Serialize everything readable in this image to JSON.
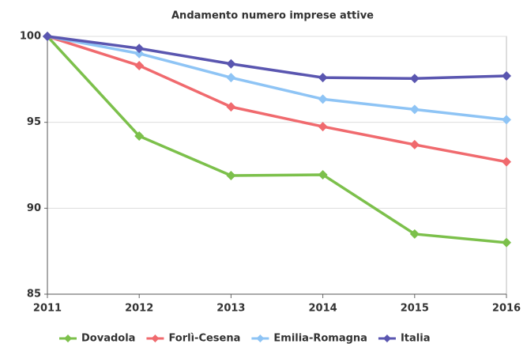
{
  "chart_data": {
    "type": "line",
    "title": "Andamento numero imprese attive",
    "x": [
      2011,
      2012,
      2013,
      2014,
      2015,
      2016
    ],
    "xlim": [
      2011,
      2016
    ],
    "xticks": [
      2011,
      2012,
      2013,
      2014,
      2015,
      2016
    ],
    "ylim": [
      85,
      100
    ],
    "yticks": [
      85,
      90,
      95,
      100
    ],
    "grid": true,
    "legend": "bottom",
    "series": [
      {
        "name": "Dovadola",
        "color": "#7cc04b",
        "values": [
          100,
          94.2,
          91.9,
          91.95,
          88.5,
          88.0
        ]
      },
      {
        "name": "Forlì-Cesena",
        "color": "#f06a6e",
        "values": [
          100,
          98.3,
          95.9,
          94.75,
          93.7,
          92.7
        ]
      },
      {
        "name": "Emilia-Romagna",
        "color": "#8ec4f5",
        "values": [
          100,
          99.0,
          97.6,
          96.35,
          95.75,
          95.15
        ]
      },
      {
        "name": "Italia",
        "color": "#5a56b0",
        "values": [
          100,
          99.3,
          98.4,
          97.6,
          97.55,
          97.7
        ]
      }
    ]
  }
}
